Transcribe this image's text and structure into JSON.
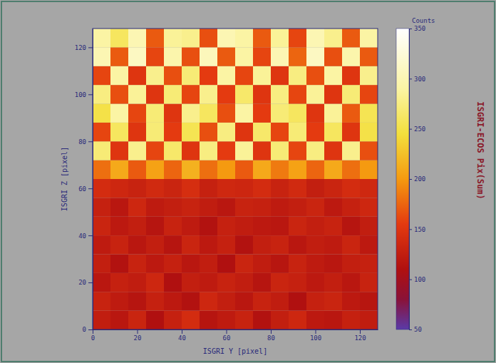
{
  "chart_data": {
    "type": "heatmap",
    "title": "ISGRI-ECOS Pix(Sum)",
    "x_label": "ISGRI Y [pixel]",
    "y_label": "ISGRI Z [pixel]",
    "x": [
      4,
      12,
      20,
      28,
      36,
      44,
      52,
      60,
      68,
      76,
      84,
      92,
      100,
      108,
      116,
      124
    ],
    "y": [
      4,
      12,
      20,
      28,
      36,
      44,
      52,
      60,
      68,
      76,
      84,
      92,
      100,
      108,
      116,
      124
    ],
    "xlim": [
      0,
      128
    ],
    "ylim": [
      0,
      128
    ],
    "xticks": [
      0,
      20,
      40,
      60,
      80,
      100,
      120
    ],
    "yticks": [
      0,
      20,
      40,
      60,
      80,
      100,
      120
    ],
    "cells": [
      [
        125,
        118,
        132,
        110,
        128,
        140,
        115,
        122,
        130,
        112,
        126,
        135,
        120,
        118,
        128,
        124
      ],
      [
        130,
        122,
        115,
        128,
        120,
        112,
        135,
        126,
        118,
        130,
        124,
        110,
        128,
        132,
        120,
        116
      ],
      [
        118,
        128,
        124,
        135,
        110,
        126,
        122,
        130,
        125,
        115,
        132,
        128,
        120,
        126,
        118,
        130
      ],
      [
        126,
        112,
        130,
        120,
        128,
        118,
        125,
        110,
        132,
        124,
        116,
        130,
        122,
        118,
        126,
        128
      ],
      [
        122,
        130,
        118,
        126,
        115,
        132,
        120,
        128,
        112,
        126,
        130,
        118,
        125,
        122,
        132,
        120
      ],
      [
        132,
        120,
        126,
        115,
        130,
        122,
        112,
        128,
        124,
        120,
        118,
        132,
        126,
        130,
        115,
        125
      ],
      [
        128,
        118,
        135,
        122,
        126,
        130,
        124,
        118,
        130,
        128,
        122,
        126,
        132,
        120,
        128,
        135
      ],
      [
        140,
        135,
        130,
        138,
        132,
        142,
        128,
        136,
        134,
        140,
        130,
        138,
        126,
        132,
        140,
        136
      ],
      [
        180,
        210,
        170,
        205,
        175,
        215,
        180,
        200,
        170,
        210,
        185,
        205,
        175,
        210,
        180,
        200
      ],
      [
        270,
        150,
        280,
        160,
        265,
        150,
        275,
        155,
        285,
        150,
        270,
        160,
        275,
        150,
        280,
        165
      ],
      [
        160,
        260,
        150,
        270,
        155,
        255,
        165,
        275,
        150,
        265,
        160,
        270,
        155,
        260,
        150,
        250
      ],
      [
        250,
        290,
        160,
        270,
        150,
        280,
        260,
        165,
        290,
        155,
        270,
        260,
        150,
        285,
        170,
        255
      ],
      [
        275,
        165,
        285,
        150,
        270,
        160,
        280,
        155,
        265,
        150,
        275,
        160,
        285,
        150,
        270,
        160
      ],
      [
        160,
        290,
        150,
        280,
        165,
        270,
        155,
        290,
        160,
        285,
        150,
        275,
        165,
        290,
        150,
        280
      ],
      [
        300,
        170,
        310,
        160,
        295,
        165,
        305,
        170,
        290,
        160,
        300,
        175,
        310,
        165,
        295,
        170
      ],
      [
        290,
        260,
        300,
        170,
        285,
        280,
        165,
        300,
        290,
        170,
        285,
        160,
        300,
        280,
        170,
        290
      ]
    ],
    "colorbar": {
      "label": "Counts",
      "range": [
        50,
        350
      ],
      "ticks": [
        50,
        100,
        150,
        200,
        250,
        300,
        350
      ]
    }
  }
}
